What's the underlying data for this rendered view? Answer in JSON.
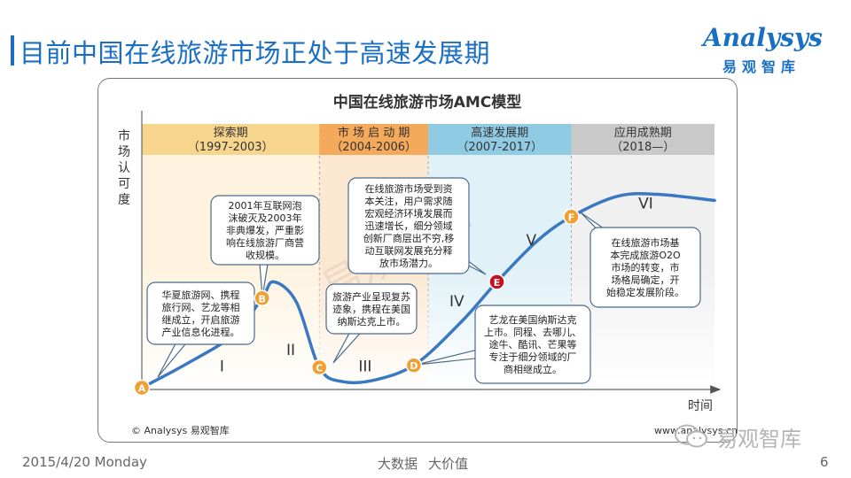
{
  "header": {
    "title": "目前中国在线旅游市场正处于高速发展期",
    "logo_word": "Analysys",
    "logo_sub": "易观智库"
  },
  "chart_data": {
    "type": "line",
    "title": "中国在线旅游市场AMC模型",
    "ylabel": "市场认可度",
    "xlabel": "时间",
    "y_range": [
      0,
      100
    ],
    "x_range": [
      0,
      100
    ],
    "stages": [
      {
        "name": "探索期",
        "period": "（1997-2003）",
        "start": 0,
        "end": 31,
        "color": "#f8d58c"
      },
      {
        "name": "市 场 启 动 期",
        "period": "（2004-2006）",
        "start": 31,
        "end": 50,
        "color": "#f5a95a"
      },
      {
        "name": "高速发展期",
        "period": "（2007-2017）",
        "start": 50,
        "end": 75,
        "color": "#8fcce4"
      },
      {
        "name": "应用成熟期",
        "period": "（2018—）",
        "start": 75,
        "end": 100,
        "color": "#c9c9c9"
      }
    ],
    "curve": {
      "x": [
        0,
        8,
        16,
        21,
        23,
        27,
        31,
        35,
        41,
        48,
        56,
        62,
        69,
        75,
        83,
        90,
        100
      ],
      "y": [
        0,
        12,
        26,
        44,
        52,
        42,
        10,
        3,
        4,
        12,
        33,
        52,
        72,
        84,
        94,
        95,
        92
      ]
    },
    "phase_labels": [
      {
        "label": "I",
        "x": 14,
        "y": 8
      },
      {
        "label": "II",
        "x": 26,
        "y": 16
      },
      {
        "label": "III",
        "x": 39,
        "y": 8
      },
      {
        "label": "IV",
        "x": 55,
        "y": 40
      },
      {
        "label": "V",
        "x": 68,
        "y": 70
      },
      {
        "label": "VI",
        "x": 88,
        "y": 88
      }
    ],
    "points": [
      {
        "label": "A",
        "x": 0,
        "y": 0,
        "color": "#f0a030"
      },
      {
        "label": "B",
        "x": 21,
        "y": 44,
        "color": "#f0a030"
      },
      {
        "label": "C",
        "x": 31,
        "y": 10,
        "color": "#f0a030"
      },
      {
        "label": "D",
        "x": 47.5,
        "y": 11,
        "color": "#f0a030"
      },
      {
        "label": "E",
        "x": 62,
        "y": 52,
        "color": "#c8101e"
      },
      {
        "label": "F",
        "x": 75,
        "y": 84,
        "color": "#f0a030"
      }
    ],
    "annotations": [
      {
        "target": "A",
        "lines": [
          "华夏旅游网、携程",
          "旅行网、艺龙等相",
          "继成立，开启旅游",
          "产业信息化进程。"
        ]
      },
      {
        "target": "B",
        "lines": [
          "2001年互联网泡",
          "沫破灭及2003年",
          "非典爆发，严重影",
          "响在线旅游厂商营",
          "收规模。"
        ]
      },
      {
        "target": "C",
        "lines": [
          "旅游产业呈现复苏",
          "迹象，携程在美国",
          "纳斯达克上市。"
        ]
      },
      {
        "target": "E",
        "lines": [
          "在线旅游市场受到资",
          "本关注，用户需求随",
          "宏观经济环境发展而",
          "迅速增长，细分领域",
          "创新厂商层出不穷,移",
          "动互联网发展充分释",
          "放市场潜力。"
        ]
      },
      {
        "target": "D",
        "lines": [
          "艺龙在美国纳斯达克",
          "上市。同程、去哪儿、",
          "途牛、酷讯、芒果等",
          "专注于细分领域的厂",
          "商相继成立。"
        ]
      },
      {
        "target": "F",
        "lines": [
          "在线旅游市场基",
          "本完成旅游O2O",
          "市场的转变，市",
          "场格局确定，开",
          "始稳定发展阶段。"
        ]
      }
    ],
    "copyright": "© Analysys 易观智库",
    "website": "www.analysys.cn",
    "watermark": "易观智库"
  },
  "footer": {
    "date": "2015/4/20 Monday",
    "center_left": "大数据",
    "center_right": "大价值",
    "page": "6",
    "wechat_brand": "易观智库",
    "wechat_icon": "wechat-icon"
  },
  "colors": {
    "brand": "#1a6fc2",
    "curve": "#3a78c2",
    "box_border": "#4a6b8c"
  }
}
